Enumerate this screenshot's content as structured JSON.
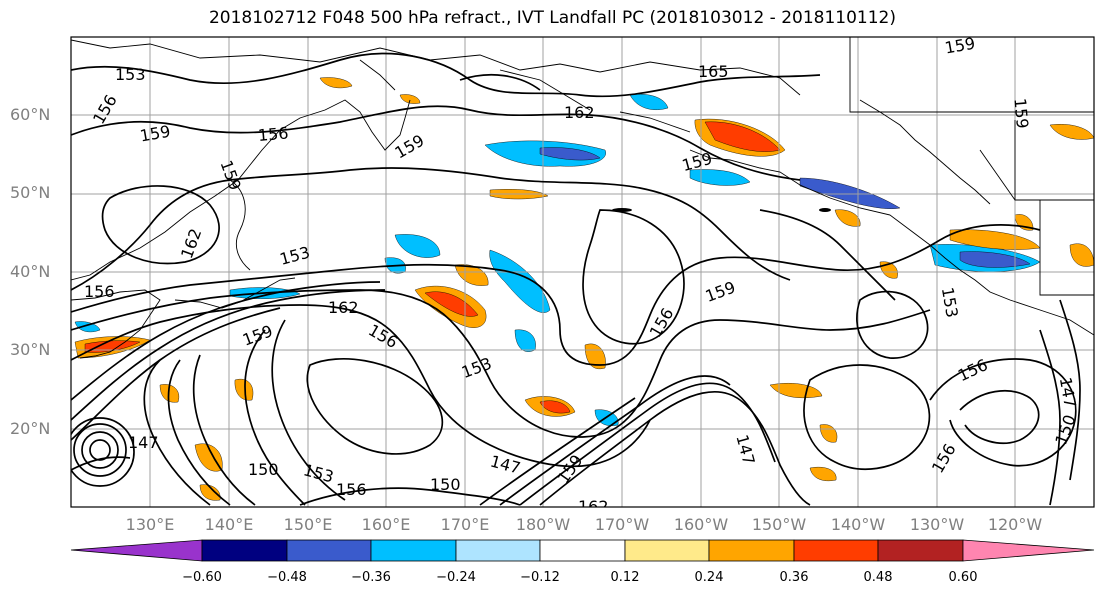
{
  "title": "2018102712 F048 500 hPa refract., IVT Landfall PC (2018103012 - 2018110112)",
  "lat_labels": [
    "60°N",
    "50°N",
    "40°N",
    "30°N",
    "20°N"
  ],
  "lon_labels": [
    "130°E",
    "140°E",
    "150°E",
    "160°E",
    "170°E",
    "180°W",
    "170°W",
    "160°W",
    "150°W",
    "140°W",
    "130°W",
    "120°W"
  ],
  "colorbar": {
    "ticks": [
      "−0.60",
      "−0.48",
      "−0.36",
      "−0.24",
      "−0.12",
      "0.12",
      "0.24",
      "0.36",
      "0.48",
      "0.60"
    ],
    "colors": [
      "#9933cc",
      "#000080",
      "#3a5bcc",
      "#00bfff",
      "#aee4ff",
      "#ffffff",
      "#ffea8a",
      "#ffa500",
      "#ff3d00",
      "#b22222",
      "#ff85b0"
    ]
  },
  "contour_labels": [
    "153",
    "156",
    "159",
    "156",
    "159",
    "159",
    "162",
    "153",
    "156",
    "162",
    "159",
    "156",
    "153",
    "165",
    "162",
    "159",
    "156",
    "159",
    "153",
    "150",
    "153",
    "156",
    "150",
    "147",
    "159",
    "162",
    "147",
    "147",
    "156",
    "156",
    "150",
    "147",
    "159",
    "159"
  ],
  "style": {
    "contour_color": "#000000",
    "grid_color": "#a0a0a0",
    "coast_color": "#000000"
  }
}
